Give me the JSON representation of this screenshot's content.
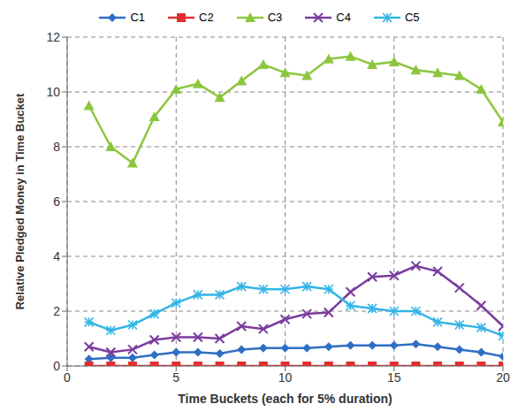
{
  "chart_data": {
    "type": "line",
    "x_label": "Time Buckets (each for 5% duration)",
    "y_label": "Relative Pledged Money in Time Bucket",
    "x": [
      1,
      2,
      3,
      4,
      5,
      6,
      7,
      8,
      9,
      10,
      11,
      12,
      13,
      14,
      15,
      16,
      17,
      18,
      19,
      20
    ],
    "series": [
      {
        "name": "C1",
        "color": "#2f6fc4",
        "marker": "diamond",
        "values": [
          0.25,
          0.3,
          0.3,
          0.4,
          0.5,
          0.5,
          0.45,
          0.6,
          0.65,
          0.65,
          0.65,
          0.7,
          0.75,
          0.75,
          0.75,
          0.8,
          0.7,
          0.6,
          0.5,
          0.35
        ]
      },
      {
        "name": "C2",
        "color": "#e0302c",
        "marker": "square",
        "values": [
          0,
          0,
          0,
          0,
          0,
          0,
          0,
          0,
          0,
          0,
          0,
          0,
          0,
          0,
          0,
          0,
          0,
          0,
          0,
          0
        ]
      },
      {
        "name": "C3",
        "color": "#8cc63f",
        "marker": "triangle",
        "values": [
          9.5,
          8.0,
          7.4,
          9.1,
          10.1,
          10.3,
          9.8,
          10.4,
          11.0,
          10.7,
          10.6,
          11.2,
          11.3,
          11.0,
          11.1,
          10.8,
          10.7,
          10.6,
          10.1,
          8.9
        ]
      },
      {
        "name": "C4",
        "color": "#7a3c9e",
        "marker": "x",
        "values": [
          0.7,
          0.5,
          0.6,
          0.95,
          1.05,
          1.05,
          1.0,
          1.45,
          1.35,
          1.7,
          1.9,
          1.95,
          2.7,
          3.25,
          3.3,
          3.65,
          3.45,
          2.85,
          2.2,
          1.45
        ]
      },
      {
        "name": "C5",
        "color": "#33b5e5",
        "marker": "star",
        "values": [
          1.6,
          1.3,
          1.5,
          1.9,
          2.3,
          2.6,
          2.6,
          2.9,
          2.8,
          2.8,
          2.9,
          2.8,
          2.2,
          2.1,
          2.0,
          2.0,
          1.6,
          1.5,
          1.4,
          1.1
        ]
      }
    ],
    "xlim": [
      0,
      20
    ],
    "xticks": [
      0,
      5,
      10,
      15,
      20
    ],
    "ylim": [
      0,
      12
    ],
    "yticks": [
      0,
      2,
      4,
      6,
      8,
      10,
      12
    ],
    "grid": true,
    "legend": "top"
  }
}
